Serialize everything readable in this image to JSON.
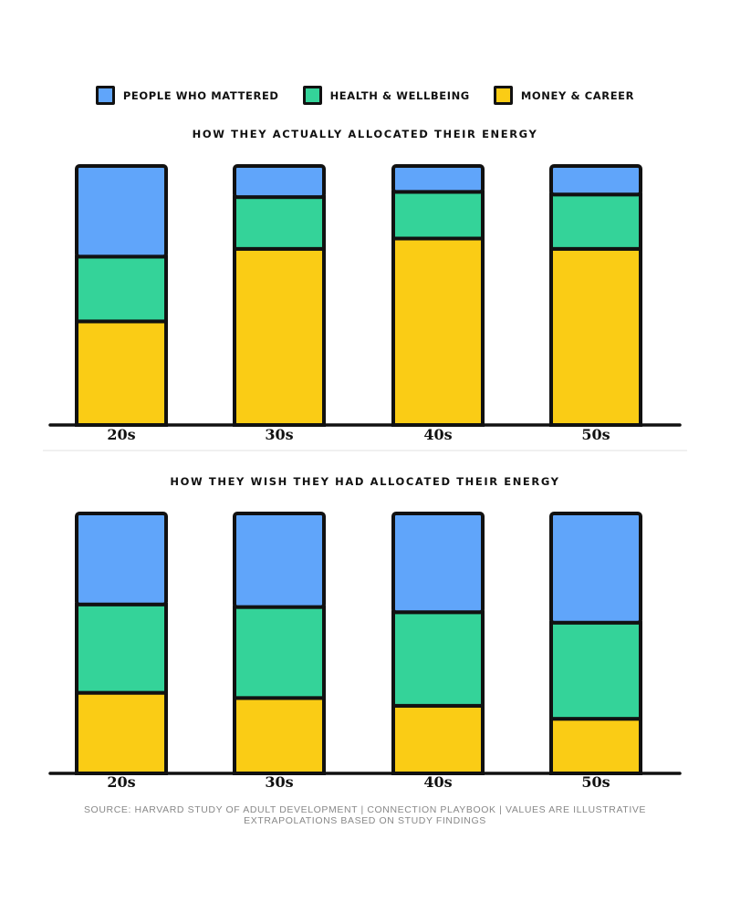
{
  "legend": [
    {
      "label": "PEOPLE WHO MATTERED",
      "color": "#60a5fa"
    },
    {
      "label": "HEALTH & WELLBEING",
      "color": "#34d399"
    },
    {
      "label": "MONEY & CAREER",
      "color": "#facc15"
    }
  ],
  "chart_data": [
    {
      "type": "bar",
      "stacked": true,
      "title": "HOW THEY ACTUALLY ALLOCATED THEIR ENERGY",
      "categories": [
        "20s",
        "30s",
        "40s",
        "50s"
      ],
      "ylim": [
        0,
        100
      ],
      "series": [
        {
          "name": "MONEY & CAREER",
          "color": "#facc15",
          "values": [
            40,
            68,
            72,
            68
          ]
        },
        {
          "name": "HEALTH & WELLBEING",
          "color": "#34d399",
          "values": [
            25,
            20,
            18,
            21
          ]
        },
        {
          "name": "PEOPLE WHO MATTERED",
          "color": "#60a5fa",
          "values": [
            35,
            12,
            10,
            11
          ]
        }
      ]
    },
    {
      "type": "bar",
      "stacked": true,
      "title": "HOW THEY WISH THEY HAD ALLOCATED THEIR ENERGY",
      "categories": [
        "20s",
        "30s",
        "40s",
        "50s"
      ],
      "ylim": [
        0,
        100
      ],
      "series": [
        {
          "name": "MONEY & CAREER",
          "color": "#facc15",
          "values": [
            31,
            29,
            26,
            21
          ]
        },
        {
          "name": "HEALTH & WELLBEING",
          "color": "#34d399",
          "values": [
            34,
            35,
            36,
            37
          ]
        },
        {
          "name": "PEOPLE WHO MATTERED",
          "color": "#60a5fa",
          "values": [
            35,
            36,
            38,
            42
          ]
        }
      ]
    }
  ],
  "source_text": "SOURCE: HARVARD STUDY OF ADULT DEVELOPMENT  |  CONNECTION PLAYBOOK  |  VALUES ARE ILLUSTRATIVE EXTRAPOLATIONS BASED ON STUDY FINDINGS"
}
